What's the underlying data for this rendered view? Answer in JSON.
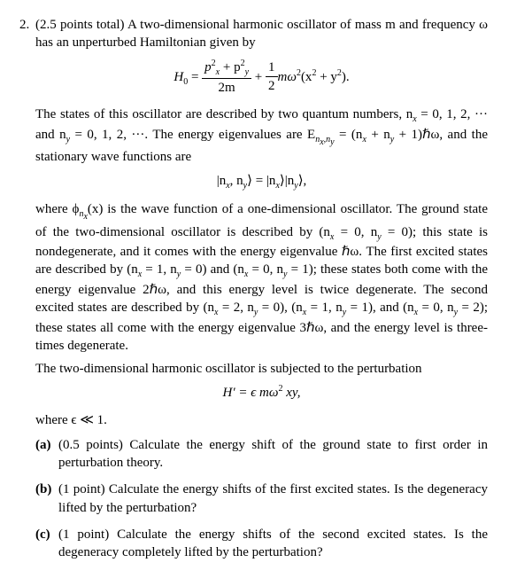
{
  "problem": {
    "number": "2.",
    "points_intro": "(2.5 points total) A two-dimensional harmonic oscillator of mass m and frequency ω has an unperturbed Hamiltonian given by",
    "eq_H0_lhs": "H",
    "eq_H0_sub0": "0",
    "eq_H0_eq": " = ",
    "frac1_num_a": "p",
    "frac1_num_b": " + p",
    "frac1_den": "2m",
    "plus": " + ",
    "frac2_num": "1",
    "frac2_den": "2",
    "momega": "mω",
    "paren_xy": "(x",
    "plus_y": " + y",
    "close_paren": ").",
    "para2_a": "The states of this oscillator are described by two quantum numbers, n",
    "para2_b": " = 0, 1, 2, ··· and n",
    "para2_c": " = 0, 1, 2, ···. The energy eigenvalues are E",
    "para2_d": " = (n",
    "para2_e": " + n",
    "para2_f": " + 1)ℏω, and the stationary wave functions are",
    "eq_ket": "|n",
    "eq_ket_mid": ", n",
    "eq_ket_close": "⟩ = |n",
    "eq_ket_mid2": "⟩|n",
    "eq_ket_end": "⟩,",
    "para3_a": "where ϕ",
    "para3_b": "(x) is the wave function of a one-dimensional oscillator. The ground state of the two-dimensional oscillator is described by (n",
    "para3_c": " = 0, n",
    "para3_d": " = 0); this state is nondegenerate, and it comes with the energy eigenvalue ℏω. The first excited states are described by (n",
    "para3_e": " = 1, n",
    "para3_f": " = 0) and (n",
    "para3_g": " = 0, n",
    "para3_h": " = 1); these states both come with the energy eigenvalue 2ℏω, and this energy level is twice degenerate. The second excited states are described by (n",
    "para3_i": " = 2, n",
    "para3_j": " = 0), (n",
    "para3_k": " = 1, n",
    "para3_l": " = 1), and (n",
    "para3_m": " = 0, n",
    "para3_n": " = 2); these states all come with the energy eigenvalue 3ℏω, and the energy level is three-times degenerate.",
    "para4": "The two-dimensional harmonic oscillator is subjected to the perturbation",
    "eq_Hprime": "H′ = ϵ mω",
    "eq_Hprime_tail": " xy,",
    "para5": "where ϵ ≪ 1.",
    "parts": {
      "a": {
        "label": "(a)",
        "text": "(0.5 points) Calculate the energy shift of the ground state to first order in perturbation theory."
      },
      "b": {
        "label": "(b)",
        "text": "(1 point) Calculate the energy shifts of the first excited states. Is the degeneracy lifted by the perturbation?"
      },
      "c": {
        "label": "(c)",
        "text": "(1 point) Calculate the energy shifts of the second excited states. Is the degeneracy completely lifted by the perturbation?"
      }
    },
    "subs": {
      "x": "x",
      "y": "y",
      "nx": "n",
      "nxsub": "x",
      "nysub": "y",
      "nxny": "n",
      "two": "2"
    }
  }
}
